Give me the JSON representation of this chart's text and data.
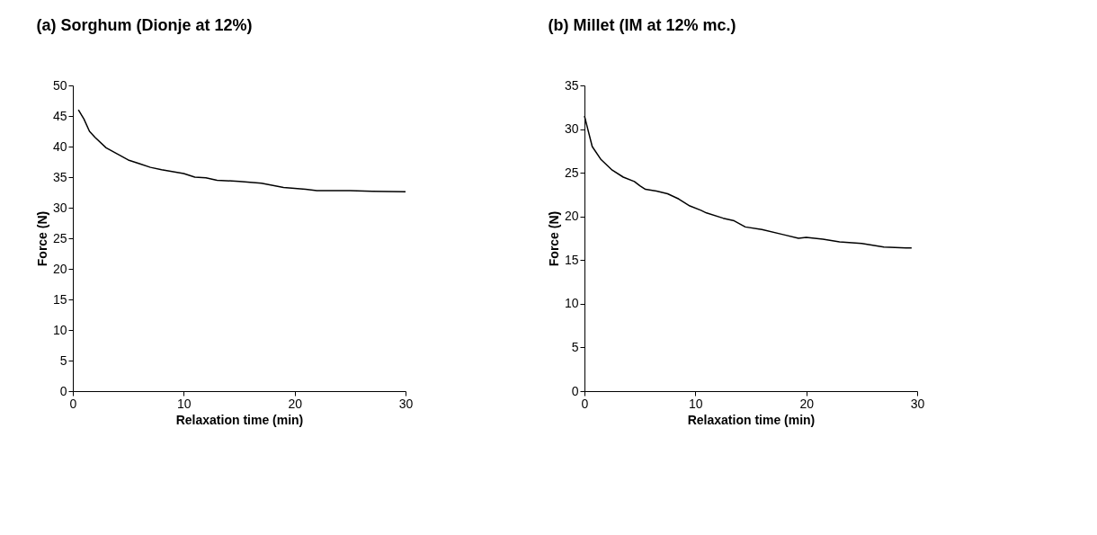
{
  "chart_data": [
    {
      "type": "line",
      "title": "(a) Sorghum  (Dionje at 12%)",
      "xlabel": "Relaxation time (min)",
      "ylabel": "Force (N)",
      "xlim": [
        0,
        30
      ],
      "xticks": [
        0,
        10,
        20,
        30
      ],
      "ylim": [
        0,
        50
      ],
      "yticks": [
        0,
        5,
        10,
        15,
        20,
        25,
        30,
        35,
        40,
        45,
        50
      ],
      "grid": false,
      "marker": "none",
      "line_style": "solid",
      "series": [
        {
          "color": "#000000",
          "x": [
            0.5,
            1,
            1.5,
            2,
            3,
            4,
            5,
            6,
            7,
            8,
            10,
            11,
            12,
            13,
            15,
            17,
            19,
            21,
            22,
            25,
            27,
            30
          ],
          "values": [
            46,
            44.5,
            42.5,
            41.5,
            39.8,
            38.8,
            37.8,
            37.2,
            36.6,
            36.2,
            35.6,
            35,
            34.9,
            34.5,
            34.3,
            34,
            33.3,
            33,
            32.8,
            32.8,
            32.7,
            32.6
          ]
        }
      ]
    },
    {
      "type": "line",
      "title": "(b) Millet (IM at 12% mc.)",
      "xlabel": "Relaxation time (min)",
      "ylabel": "Force (N)",
      "xlim": [
        0,
        30
      ],
      "xticks": [
        0,
        10,
        20,
        30
      ],
      "ylim": [
        0,
        35
      ],
      "yticks": [
        0,
        5,
        10,
        15,
        20,
        25,
        30,
        35
      ],
      "grid": false,
      "marker": "none",
      "line_style": "solid",
      "series": [
        {
          "color": "#000000",
          "x": [
            0,
            0.3,
            0.7,
            1.5,
            2.5,
            3.5,
            4.5,
            5,
            5.5,
            6.5,
            7.5,
            8.5,
            9.5,
            10.5,
            11,
            12.5,
            13.5,
            14.5,
            16,
            18,
            19.3,
            20,
            21.5,
            23,
            25,
            27,
            29,
            29.5
          ],
          "values": [
            31.5,
            30,
            28,
            26.5,
            25.3,
            24.5,
            24,
            23.5,
            23.1,
            22.9,
            22.6,
            22,
            21.2,
            20.7,
            20.4,
            19.8,
            19.5,
            18.8,
            18.5,
            17.9,
            17.5,
            17.6,
            17.4,
            17.1,
            16.9,
            16.5,
            16.4,
            16.4
          ]
        }
      ]
    }
  ]
}
